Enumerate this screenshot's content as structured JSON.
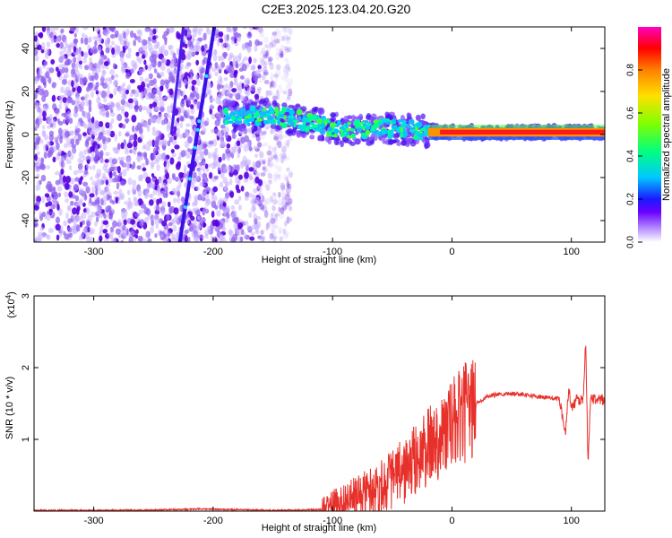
{
  "title": "C2E3.2025.123.04.20.G20",
  "chart_data": [
    {
      "type": "heatmap",
      "name": "spectrogram",
      "xlabel": "Height of straight line (km)",
      "ylabel": "Frequency (Hz)",
      "xlim": [
        -350,
        128
      ],
      "ylim": [
        -50,
        50
      ],
      "xticks": [
        -300,
        -200,
        -100,
        0,
        100
      ],
      "yticks": [
        -40,
        -20,
        0,
        20,
        40
      ],
      "colorbar": {
        "label": "Normalized spectral amplitude",
        "range": [
          0,
          1
        ],
        "ticks": [
          0.0,
          0.2,
          0.4,
          0.6,
          0.8
        ],
        "tick_labels": [
          "0.0",
          "0.2",
          "0.4",
          "0.6",
          "0.8"
        ],
        "colormap": [
          "#ffffff",
          "#9a6cff",
          "#6a00ff",
          "#1a1aff",
          "#00c8ff",
          "#00ff80",
          "#80ff00",
          "#ffe000",
          "#ff8000",
          "#ff0000",
          "#ff00c0"
        ]
      },
      "features": {
        "noise_region_x": [
          -350,
          -135
        ],
        "diagonal_streak": {
          "x_start": -228,
          "y_start": -50,
          "x_end": -199,
          "y_end": 50
        },
        "secondary_streak": {
          "x_start": -235,
          "y_start": 0,
          "x_end": -225,
          "y_end": 50
        },
        "signal_band": [
          {
            "x": -190,
            "y": 8
          },
          {
            "x": -150,
            "y": 9
          },
          {
            "x": -120,
            "y": 6
          },
          {
            "x": -90,
            "y": 2
          },
          {
            "x": -60,
            "y": 3
          },
          {
            "x": -30,
            "y": 2
          },
          {
            "x": 0,
            "y": 1
          },
          {
            "x": 50,
            "y": 1
          },
          {
            "x": 128,
            "y": 1
          }
        ]
      }
    },
    {
      "type": "line",
      "name": "snr",
      "xlabel": "Height of straight line (km)",
      "ylabel": "SNR (10 * v/v)",
      "y_multiplier": "(x10",
      "y_multiplier_exp": "4",
      "y_multiplier_close": ")",
      "xlim": [
        -350,
        128
      ],
      "ylim": [
        0,
        3
      ],
      "xticks": [
        -300,
        -200,
        -100,
        0,
        100
      ],
      "yticks": [
        1,
        2,
        3
      ],
      "color": "#e8302a",
      "series": [
        {
          "x": [
            -350,
            -300,
            -250,
            -210,
            -150,
            -110,
            -100,
            -80,
            -60,
            -40,
            -25,
            -10,
            0,
            10,
            20,
            30,
            40,
            50,
            60,
            70,
            80,
            90,
            95,
            98,
            100,
            105,
            110,
            112,
            114,
            116,
            120,
            128
          ],
          "y": [
            0.01,
            0.01,
            0.015,
            0.03,
            0.01,
            0.02,
            0.1,
            0.2,
            0.35,
            0.55,
            0.8,
            1.05,
            1.2,
            1.35,
            1.5,
            1.6,
            1.63,
            1.64,
            1.63,
            1.6,
            1.58,
            1.57,
            1.1,
            1.7,
            1.45,
            1.55,
            1.55,
            2.4,
            0.6,
            1.6,
            1.55,
            1.55
          ]
        }
      ]
    }
  ]
}
